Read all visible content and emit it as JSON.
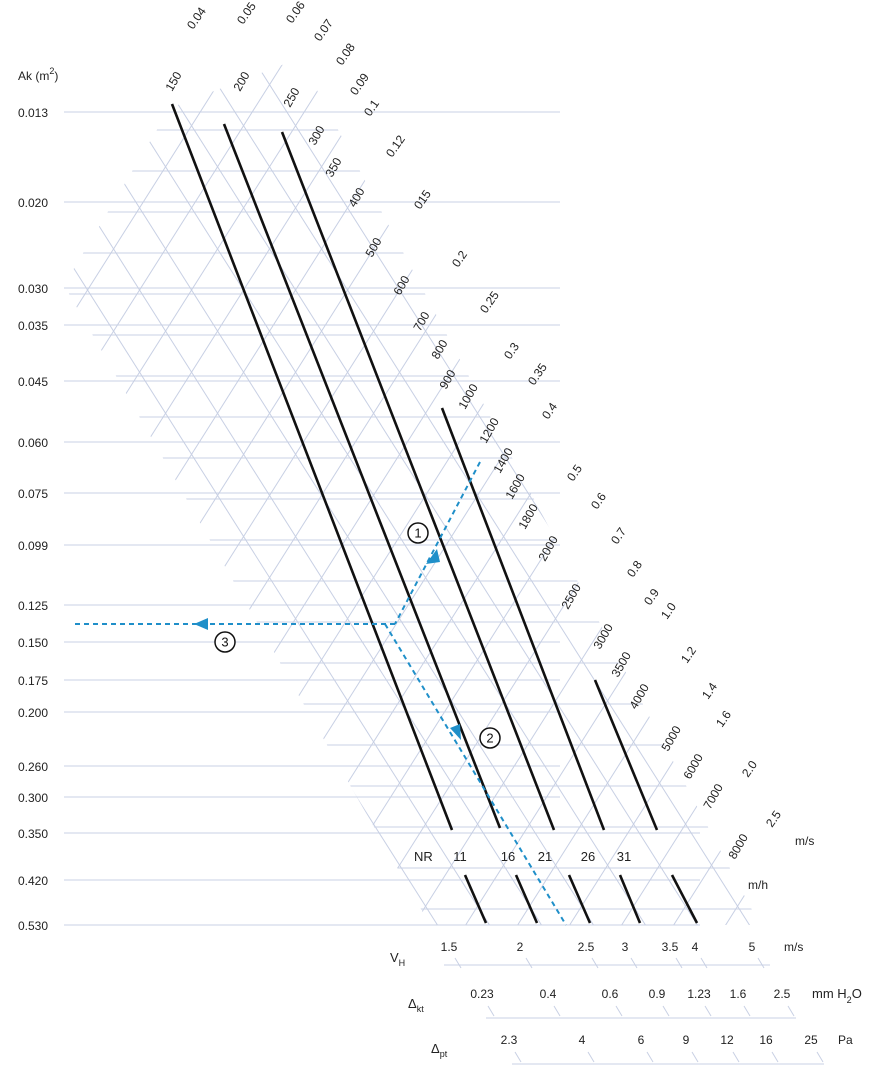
{
  "ak_axis": {
    "title": "Ak (m",
    "title_sup": "2",
    "title_close": ")",
    "values": [
      "0.013",
      "0.020",
      "0.030",
      "0.035",
      "0.045",
      "0.060",
      "0.075",
      "0.099",
      "0.125",
      "0.150",
      "0.175",
      "0.200",
      "0.260",
      "0.300",
      "0.350",
      "0.420",
      "0.530"
    ]
  },
  "velocity_ms": {
    "values": [
      "0.04",
      "0.05",
      "0.06",
      "0.07",
      "0.08",
      "0.09",
      "0.1",
      "0.12",
      "015",
      "0.2",
      "0.25",
      "0.3",
      "0.35",
      "0.4",
      "0.5",
      "0.6",
      "0.7",
      "0.8",
      "0.9",
      "1.0",
      "1.2",
      "1.4",
      "1.6",
      "2.0",
      "2.5"
    ],
    "unit": "m/s"
  },
  "flow_mh": {
    "values": [
      "150",
      "200",
      "250",
      "300",
      "350",
      "400",
      "500",
      "600",
      "700",
      "800",
      "900",
      "1000",
      "1200",
      "1400",
      "1600",
      "1800",
      "2000",
      "2500",
      "3000",
      "3500",
      "4000",
      "5000",
      "6000",
      "7000",
      "8000"
    ],
    "unit": "m/h"
  },
  "nr": {
    "label": "NR",
    "values": [
      "11",
      "16",
      "21",
      "26",
      "31"
    ]
  },
  "bottom_scales": {
    "vh": {
      "label": "V",
      "sub": "H",
      "values": [
        "1.5",
        "2",
        "2.5",
        "3",
        "3.5",
        "4",
        "5"
      ],
      "unit": "m/s"
    },
    "dkt": {
      "label": "Δ",
      "sub": "kt",
      "values": [
        "0.23",
        "0.4",
        "0.6",
        "0.9",
        "1.23",
        "1.6",
        "2.5"
      ],
      "unit": "mm H",
      "unit_sub": "2",
      "unit_tail": "O"
    },
    "dpt": {
      "label": "Δ",
      "sub": "pt",
      "values": [
        "2.3",
        "4",
        "6",
        "9",
        "12",
        "16",
        "25"
      ],
      "unit": "Pa"
    }
  },
  "steps": [
    "1",
    "2",
    "3"
  ],
  "colors": {
    "grid": "#c8d0e4",
    "path": "#1f8fc9",
    "ink": "#111111"
  }
}
